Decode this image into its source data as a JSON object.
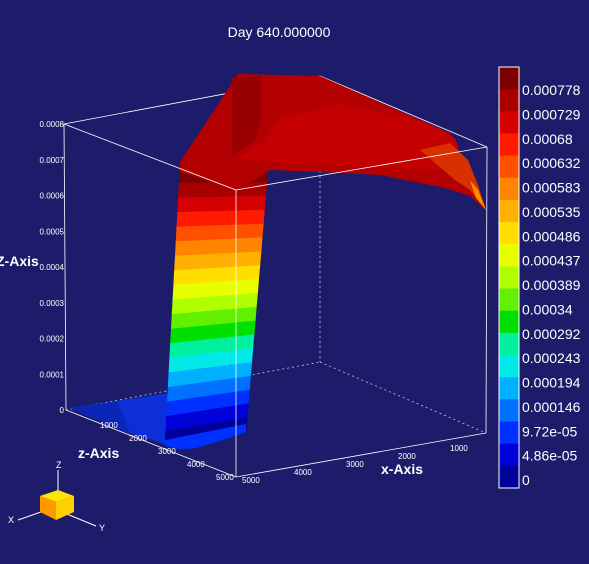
{
  "chart_data": {
    "type": "surface",
    "title": "Day 640.000000",
    "xlabel": "x-Axis",
    "ylabel": "Z-Axis",
    "zlabel": "z-Axis",
    "z_ticks": [
      "0",
      "0.0001",
      "0.0002",
      "0.0003",
      "0.0004",
      "0.0005",
      "0.0006",
      "0.0007",
      "0.0008"
    ],
    "z_range": [
      0,
      0.0008
    ],
    "depth_ticks": [
      "1000",
      "2000",
      "3000",
      "4000",
      "5000"
    ],
    "x_ticks": [
      "1000",
      "2000",
      "3000",
      "4000",
      "5000"
    ],
    "colorbar": {
      "labels": [
        "0.000778",
        "0.000729",
        "0.00068",
        "0.000632",
        "0.000583",
        "0.000535",
        "0.000486",
        "0.000437",
        "0.000389",
        "0.00034",
        "0.000292",
        "0.000243",
        "0.000194",
        "0.000146",
        "9.72e-05",
        "4.86e-05",
        "0"
      ],
      "colors": [
        "#7f0000",
        "#a80000",
        "#d50000",
        "#ff1a00",
        "#ff5000",
        "#ff8500",
        "#ffb000",
        "#ffde00",
        "#e8ff00",
        "#b0ff00",
        "#60f000",
        "#00e000",
        "#00f0a0",
        "#00e8e8",
        "#00b0ff",
        "#0070ff",
        "#0030ff",
        "#0000d8",
        "#00009a"
      ]
    },
    "grid": false
  },
  "triad": {
    "x": "X",
    "y": "Y",
    "z": "Z"
  }
}
